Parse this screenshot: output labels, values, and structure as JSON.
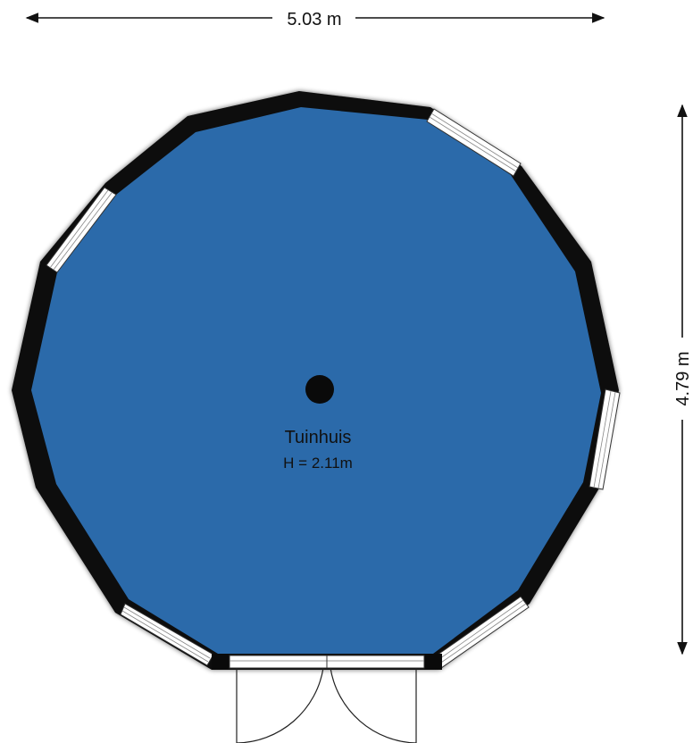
{
  "colors": {
    "floor": "#2b6aaa",
    "wall": "#0a0a0a",
    "line": "#111111",
    "background": "#ffffff"
  },
  "dimensions": {
    "width_label": "5.03 m",
    "height_label": "4.79 m"
  },
  "room": {
    "name": "Tuinhuis",
    "height_label": "H = 2.11m"
  },
  "icons": {
    "pole": "center-pole-icon",
    "door": "double-door-icon"
  }
}
